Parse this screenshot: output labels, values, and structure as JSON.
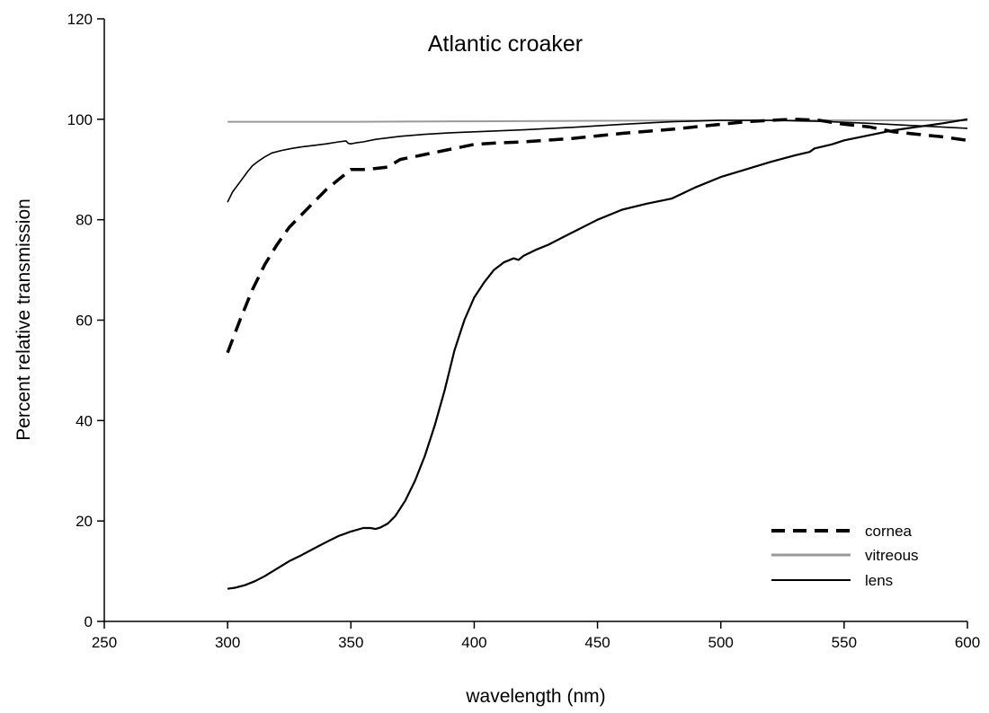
{
  "chart_data": {
    "type": "line",
    "title": "Atlantic croaker",
    "xlabel": "wavelength (nm)",
    "ylabel": "Percent relative transmission",
    "xlim": [
      250,
      600
    ],
    "ylim": [
      0,
      120
    ],
    "xticks": [
      250,
      300,
      350,
      400,
      450,
      500,
      550,
      600
    ],
    "yticks": [
      0,
      20,
      40,
      60,
      80,
      100,
      120
    ],
    "grid": false,
    "legend_position": "bottom-right",
    "series": [
      {
        "name": "cornea",
        "style": "dashed",
        "color": "#000000",
        "x": [
          300,
          305,
          310,
          315,
          320,
          325,
          330,
          335,
          340,
          345,
          350,
          355,
          360,
          365,
          370,
          380,
          390,
          400,
          410,
          420,
          440,
          460,
          480,
          500,
          510,
          520,
          530,
          540,
          550,
          560,
          570,
          580,
          590,
          600
        ],
        "y": [
          53.5,
          60,
          66,
          71,
          75,
          78.5,
          81,
          83.5,
          86,
          88,
          90,
          90,
          90.2,
          90.5,
          92,
          93,
          94,
          95,
          95.3,
          95.5,
          96.2,
          97.2,
          98,
          99,
          99.5,
          99.8,
          100,
          99.8,
          99,
          98.5,
          97.5,
          97,
          96.5,
          95.8
        ]
      },
      {
        "name": "vitreous",
        "style": "solid-grey",
        "color": "#9a9a9a",
        "x": [
          300,
          350,
          400,
          450,
          500,
          550,
          600
        ],
        "y": [
          99.5,
          99.5,
          99.6,
          99.7,
          99.8,
          99.8,
          99.8
        ]
      },
      {
        "name": "lens",
        "style": "solid",
        "color": "#000000",
        "x": [
          300,
          303,
          307,
          311,
          315,
          320,
          325,
          330,
          335,
          340,
          345,
          350,
          355,
          358,
          360,
          362,
          365,
          368,
          372,
          376,
          380,
          384,
          388,
          392,
          396,
          400,
          404,
          408,
          412,
          416,
          418,
          420,
          425,
          430,
          440,
          450,
          460,
          470,
          480,
          490,
          500,
          510,
          520,
          530,
          536,
          538,
          545,
          550,
          560,
          570,
          580,
          590,
          600
        ],
        "y": [
          6.5,
          6.7,
          7.2,
          8,
          9,
          10.5,
          12,
          13.2,
          14.5,
          15.8,
          17,
          17.9,
          18.6,
          18.6,
          18.4,
          18.7,
          19.5,
          21,
          24,
          28,
          33,
          39,
          46,
          54,
          60,
          64.5,
          67.5,
          70,
          71.5,
          72.3,
          72,
          72.8,
          74,
          75,
          77.5,
          80,
          82,
          83.2,
          84.2,
          86.5,
          88.5,
          90,
          91.5,
          92.8,
          93.5,
          94.2,
          95,
          95.8,
          96.8,
          97.8,
          98.5,
          99.2,
          100
        ]
      },
      {
        "name": "",
        "style": "solid-thin",
        "color": "#000000",
        "x": [
          300,
          302,
          305,
          308,
          310,
          312,
          315,
          318,
          322,
          326,
          330,
          335,
          340,
          345,
          348,
          349,
          350,
          352,
          355,
          360,
          370,
          380,
          390,
          400,
          420,
          440,
          460,
          480,
          500,
          520,
          540,
          560,
          580,
          600
        ],
        "y": [
          83.5,
          85.5,
          87.5,
          89.5,
          90.7,
          91.5,
          92.5,
          93.3,
          93.8,
          94.2,
          94.5,
          94.8,
          95.1,
          95.5,
          95.7,
          95.2,
          95.1,
          95.3,
          95.5,
          96,
          96.6,
          97,
          97.3,
          97.5,
          97.9,
          98.4,
          99,
          99.5,
          99.8,
          99.8,
          99.6,
          99.2,
          98.7,
          98.2
        ]
      }
    ]
  }
}
